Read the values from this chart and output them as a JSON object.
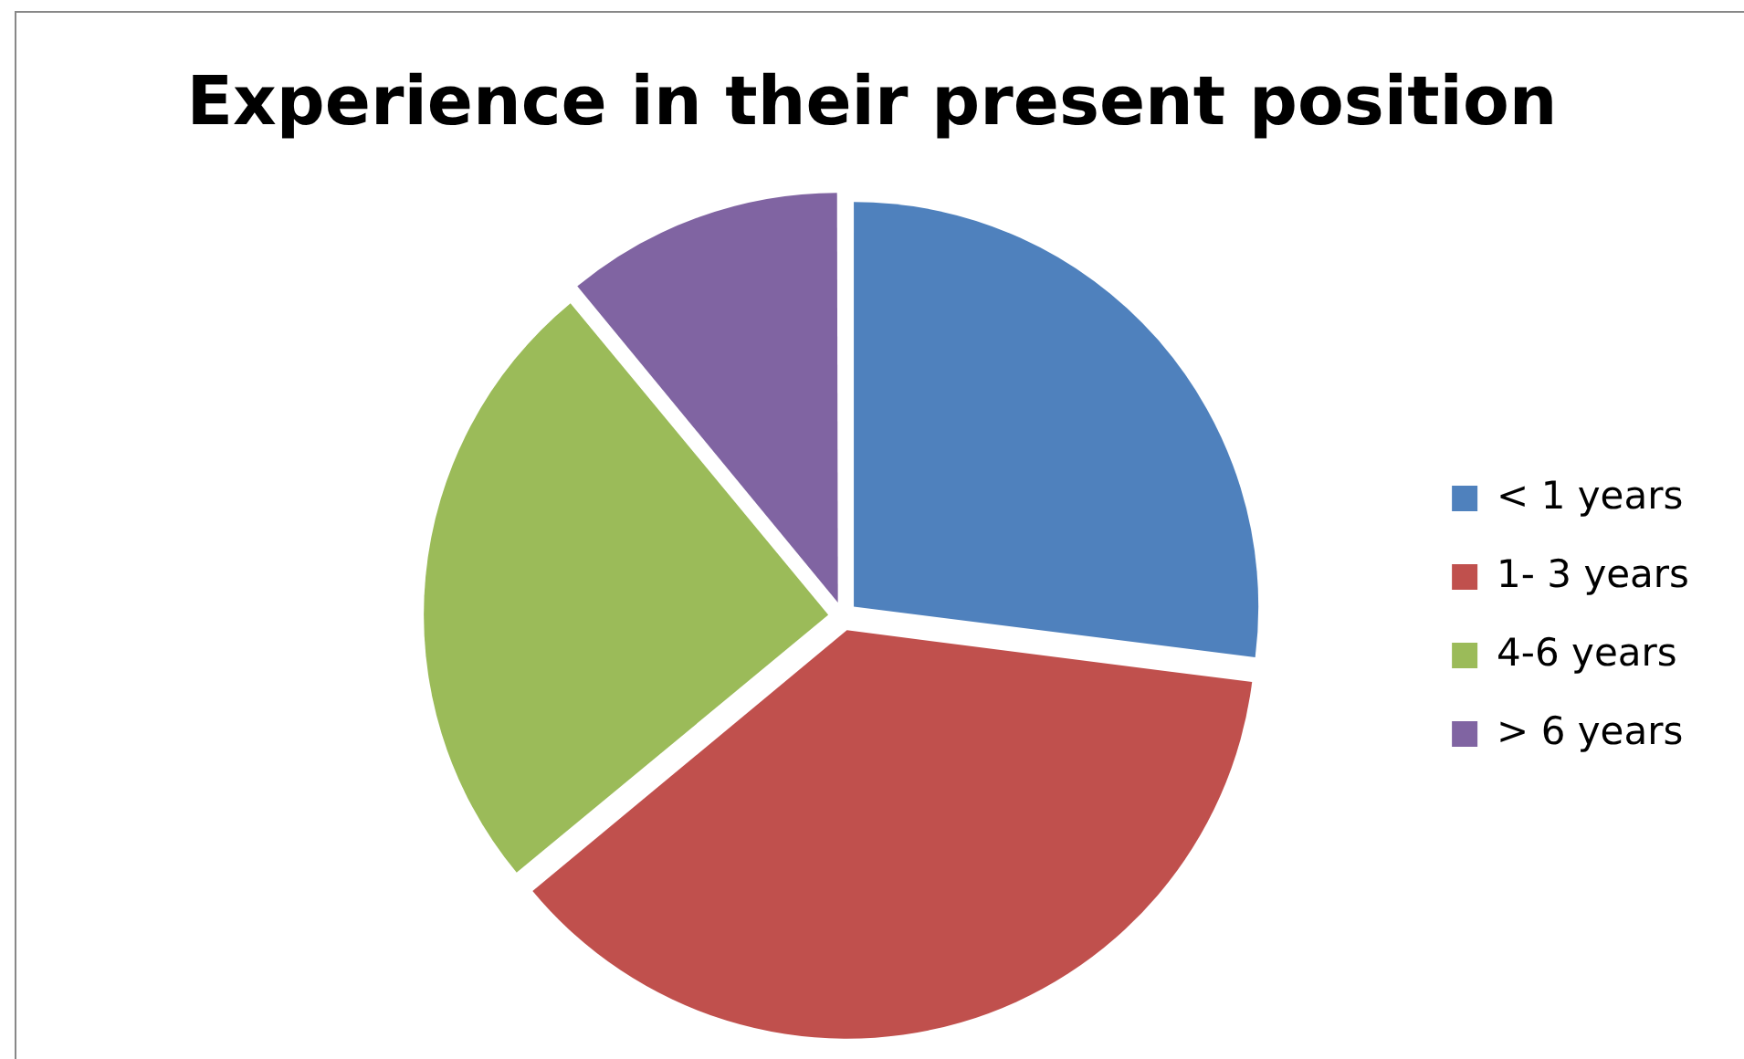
{
  "chart_data": {
    "type": "pie",
    "title": "Experience in their present position",
    "categories": [
      "< 1 years",
      "1- 3 years",
      "4-6 years",
      "> 6 years"
    ],
    "values": [
      27,
      37,
      25,
      11
    ],
    "colors": [
      "#4f81bd",
      "#c0504d",
      "#9bbb59",
      "#8064a2"
    ],
    "legend": "right"
  }
}
